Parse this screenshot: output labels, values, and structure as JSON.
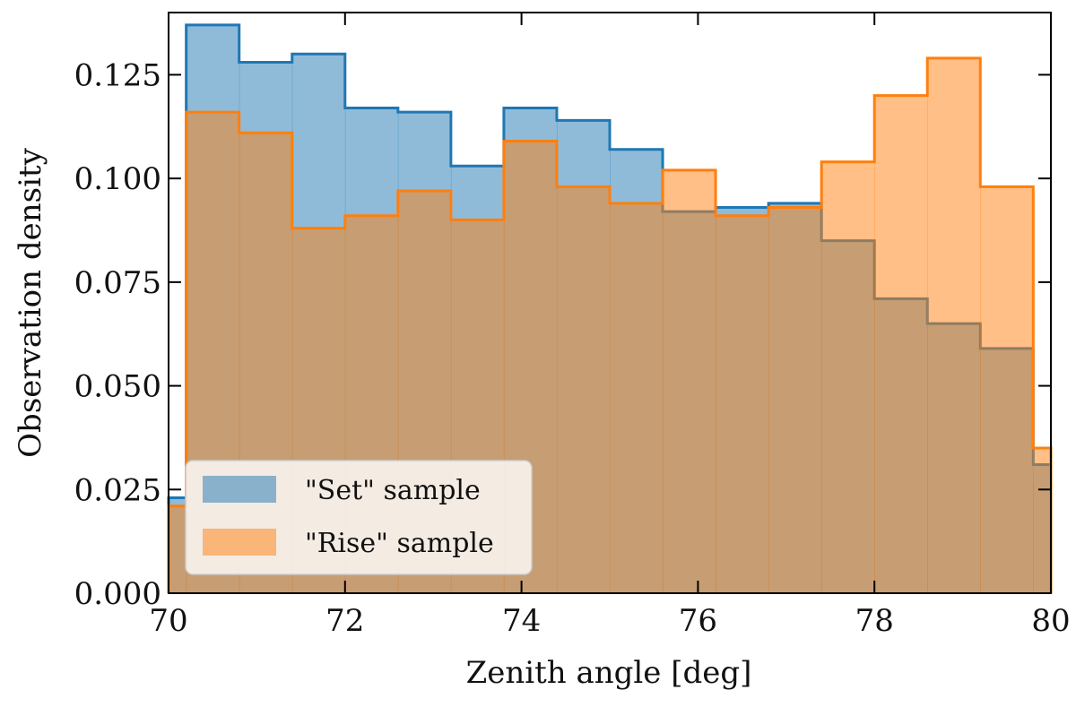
{
  "chart_data": {
    "type": "histogram",
    "title": "",
    "xlabel": "Zenith angle [deg]",
    "ylabel": "Observation density",
    "xlim": [
      70,
      80
    ],
    "ylim": [
      0,
      0.14
    ],
    "xticks": [
      70,
      72,
      74,
      76,
      78,
      80
    ],
    "xtick_labels": [
      "70",
      "72",
      "74",
      "76",
      "78",
      "80"
    ],
    "yticks": [
      0.0,
      0.025,
      0.05,
      0.075,
      0.1,
      0.125
    ],
    "ytick_labels": [
      "0.000",
      "0.025",
      "0.050",
      "0.075",
      "0.100",
      "0.125"
    ],
    "bin_edges": [
      70.0,
      70.2,
      70.8,
      71.4,
      72.0,
      72.6,
      73.2,
      73.8,
      74.4,
      75.0,
      75.6,
      76.2,
      76.8,
      77.4,
      78.0,
      78.6,
      79.2,
      79.8,
      80.0
    ],
    "series": [
      {
        "name": "\"Set\" sample",
        "color": "#1f77b4",
        "fill": "#1f77b4",
        "fill_opacity": 0.5,
        "values": [
          0.023,
          0.137,
          0.128,
          0.13,
          0.117,
          0.116,
          0.103,
          0.117,
          0.114,
          0.107,
          0.092,
          0.093,
          0.094,
          0.085,
          0.071,
          0.065,
          0.059,
          0.031
        ]
      },
      {
        "name": "\"Rise\" sample",
        "color": "#ff7f0e",
        "fill": "#ff7f0e",
        "fill_opacity": 0.5,
        "values": [
          0.021,
          0.116,
          0.111,
          0.088,
          0.091,
          0.097,
          0.09,
          0.109,
          0.098,
          0.094,
          0.102,
          0.091,
          0.093,
          0.104,
          0.12,
          0.129,
          0.098,
          0.035
        ]
      }
    ],
    "legend_position": "bottom-left",
    "grid": false
  }
}
